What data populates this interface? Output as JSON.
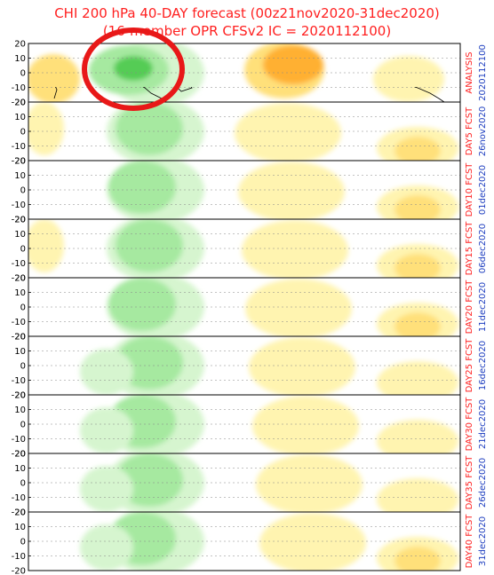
{
  "title": {
    "line1": "CHI 200 hPa 40-DAY forecast (00z21nov2020-31dec2020)",
    "line2": "(16-member OPR CFSv2 IC = 2020112100)"
  },
  "chart_data": {
    "type": "heatmap",
    "y_ticks": [
      20,
      10,
      0,
      -10,
      -20
    ],
    "ylim": [
      -20,
      20
    ],
    "panels": [
      {
        "label": "ANALYSIS",
        "date": "2020112100"
      },
      {
        "label": "DAY5 FCST",
        "date": "26nov2020"
      },
      {
        "label": "DAY10 FCST",
        "date": "01dec2020"
      },
      {
        "label": "DAY15 FCST",
        "date": "06dec2020"
      },
      {
        "label": "DAY20 FCST",
        "date": "11dec2020"
      },
      {
        "label": "DAY25 FCST",
        "date": "16dec2020"
      },
      {
        "label": "DAY30 FCST",
        "date": "21dec2020"
      },
      {
        "label": "DAY35 FCST",
        "date": "26dec2020"
      },
      {
        "label": "DAY40 FCST",
        "date": "31dec2020"
      }
    ],
    "colors": {
      "green_light": "#d6f5cf",
      "green_mid": "#a6e9a0",
      "green_dark": "#55cc55",
      "yellow_light": "#fff4b0",
      "yellow_mid": "#ffe07a",
      "orange": "#ffb030",
      "annotation_circle": "#e81818"
    }
  }
}
